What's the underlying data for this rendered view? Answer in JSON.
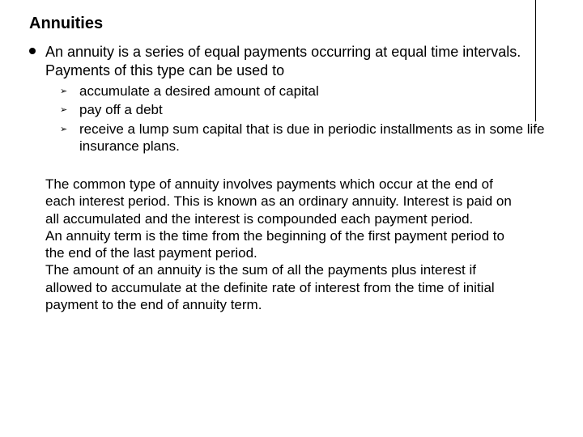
{
  "title": "Annuities",
  "intro": "An annuity is a series of equal payments occurring at equal time intervals. Payments of this type can be used to",
  "sub1": "accumulate a desired amount of capital",
  "sub2": "pay off a debt",
  "sub3": "receive a lump sum capital that is due in periodic installments as in some life insurance plans.",
  "para1": "The common type of annuity involves payments which occur at the end of each interest period. This is known as an ordinary annuity. Interest is paid on all accumulated and the interest is compounded each payment period.",
  "para2": "An annuity term is the time from the beginning of the first payment period to the end of the last payment period.",
  "para3": "The amount of an annuity is the sum of all the payments plus interest if allowed to accumulate at the definite rate of interest from the time of initial payment to the end of annuity term."
}
